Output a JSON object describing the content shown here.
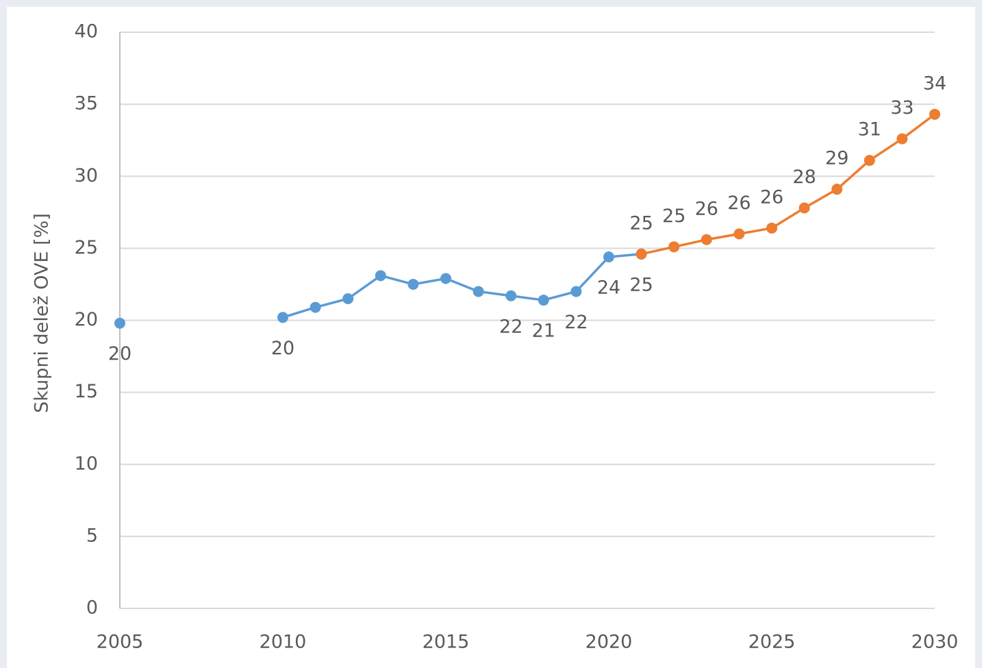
{
  "chart_data": {
    "type": "line",
    "y_label": "Skupni delež OVE  [%]",
    "x": [
      2005,
      2006,
      2007,
      2008,
      2009,
      2010,
      2011,
      2012,
      2013,
      2014,
      2015,
      2016,
      2017,
      2018,
      2019,
      2020,
      2021,
      2022,
      2023,
      2024,
      2025,
      2026,
      2027,
      2028,
      2029,
      2030
    ],
    "series": [
      {
        "color": "#5b9bd5",
        "label_position": "below",
        "values": [
          19.8,
          null,
          null,
          null,
          null,
          20.2,
          20.9,
          21.5,
          23.1,
          22.5,
          22.9,
          22.0,
          21.7,
          21.4,
          22.0,
          24.4,
          24.6,
          null,
          null,
          null,
          null,
          null,
          null,
          null,
          null,
          null
        ],
        "value_labels": [
          "20",
          null,
          null,
          null,
          null,
          "20",
          null,
          null,
          null,
          null,
          null,
          null,
          "22",
          "21",
          "22",
          "24",
          "25",
          null,
          null,
          null,
          null,
          null,
          null,
          null,
          null,
          null
        ]
      },
      {
        "color": "#ed7d31",
        "label_position": "above",
        "values": [
          null,
          null,
          null,
          null,
          null,
          null,
          null,
          null,
          null,
          null,
          null,
          null,
          null,
          null,
          null,
          null,
          24.6,
          25.1,
          25.6,
          26.0,
          26.4,
          27.8,
          29.1,
          31.1,
          32.6,
          34.3
        ],
        "value_labels": [
          null,
          null,
          null,
          null,
          null,
          null,
          null,
          null,
          null,
          null,
          null,
          null,
          null,
          null,
          null,
          null,
          "25",
          "25",
          "26",
          "26",
          "26",
          "28",
          "29",
          "31",
          "33",
          "34"
        ]
      }
    ],
    "xlim": [
      2005,
      2030
    ],
    "xticks": [
      2005,
      2010,
      2015,
      2020,
      2025,
      2030
    ],
    "ylim": [
      0,
      40
    ],
    "yticks": [
      0,
      5,
      10,
      15,
      20,
      25,
      30,
      35,
      40
    ],
    "grid": true
  }
}
